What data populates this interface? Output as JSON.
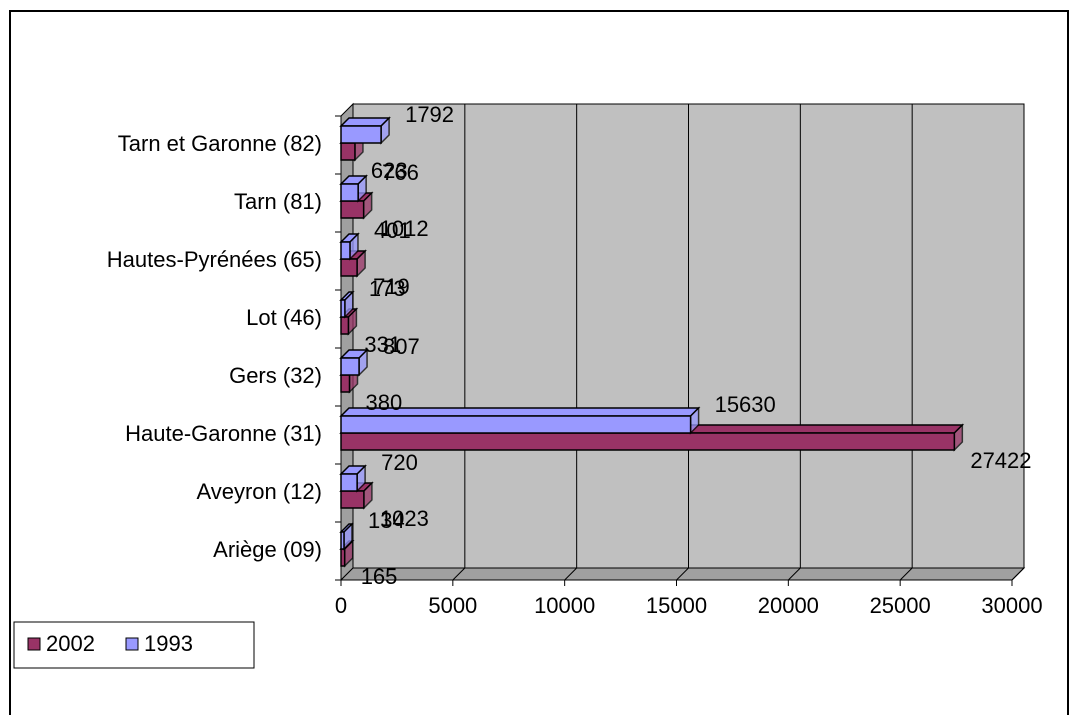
{
  "chart_data": {
    "type": "bar3d_horizontal",
    "categories": [
      "Ariège (09)",
      "Aveyron (12)",
      "Haute-Garonne (31)",
      "Gers (32)",
      "Lot (46)",
      "Hautes-Pyrénées (65)",
      "Tarn (81)",
      "Tarn et Garonne (82)"
    ],
    "series": [
      {
        "name": "2002",
        "color": "#993366",
        "values": [
          165,
          1023,
          27422,
          380,
          331,
          719,
          1012,
          623
        ]
      },
      {
        "name": "1993",
        "color": "#9999ff",
        "values": [
          134,
          720,
          15630,
          807,
          173,
          401,
          766,
          1792
        ]
      }
    ],
    "xlim": [
      0,
      30000
    ],
    "xticks": [
      0,
      5000,
      10000,
      15000,
      20000,
      25000,
      30000
    ],
    "grid": true,
    "legend": "bottom-left"
  }
}
